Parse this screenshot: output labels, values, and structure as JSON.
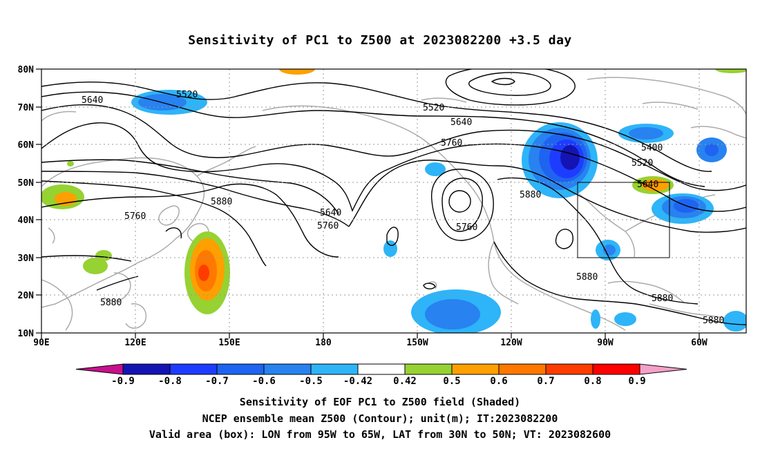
{
  "title": "Sensitivity of PC1 to Z500 at 2023082200 +3.5 day",
  "map": {
    "lat_labels": [
      "80N",
      "70N",
      "60N",
      "50N",
      "40N",
      "30N",
      "20N",
      "10N"
    ],
    "lon_labels": [
      "90E",
      "120E",
      "150E",
      "180",
      "150W",
      "120W",
      "90W",
      "60W"
    ],
    "contour_labels": [
      "5520",
      "5640",
      "5520",
      "5640",
      "5760",
      "5400",
      "5520",
      "5640",
      "5880",
      "5760",
      "5880",
      "5640",
      "5760",
      "5760",
      "5880",
      "5880",
      "5880"
    ],
    "valid_box": {
      "lon_range": [
        "95W",
        "65W"
      ],
      "lat_range": [
        "30N",
        "50N"
      ]
    },
    "colors": {
      "land_outline": "#aaaaaa",
      "contour": "#000000",
      "grid": "#999999"
    }
  },
  "colorbar": {
    "labels": [
      "-0.9",
      "-0.8",
      "-0.7",
      "-0.6",
      "-0.5",
      "-0.42",
      "0.42",
      "0.5",
      "0.6",
      "0.7",
      "0.8",
      "0.9"
    ],
    "colors": [
      "#c8108c",
      "#1414b4",
      "#1e3cff",
      "#1e64f0",
      "#2882f0",
      "#2eb4f8",
      "#ffffff",
      "#96d232",
      "#ffa000",
      "#ff7800",
      "#ff3c00",
      "#ff0000",
      "#f5a0c8"
    ]
  },
  "captions": {
    "line1": "Sensitivity of EOF PC1 to Z500 field (Shaded)",
    "line2": "NCEP ensemble mean Z500 (Contour); unit(m); IT:2023082200",
    "line3": "Valid area (box): LON from 95W to 65W, LAT from 30N to 50N; VT: 2023082600"
  }
}
